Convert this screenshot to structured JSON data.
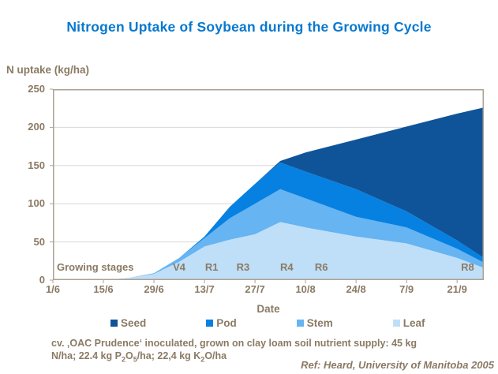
{
  "title": "Nitrogen Uptake of Soybean during the Growing Cycle",
  "y_axis": {
    "title": "N uptake (kg/ha)",
    "ticks": [
      0,
      50,
      100,
      150,
      200,
      250
    ]
  },
  "x_axis": {
    "title": "Date"
  },
  "annotations": {
    "growing_stages_label": "Growing stages",
    "stages": [
      {
        "label": "V4",
        "day": 35
      },
      {
        "label": "R1",
        "day": 44
      },
      {
        "label": "R3",
        "day": 52.7
      },
      {
        "label": "R4",
        "day": 64.8
      },
      {
        "label": "R6",
        "day": 74.4
      },
      {
        "label": "R8",
        "day": 114.9
      }
    ]
  },
  "legend": {
    "items": [
      {
        "label": "Seed",
        "color": "#0F5499"
      },
      {
        "label": "Pod",
        "color": "#0681E1"
      },
      {
        "label": "Stem",
        "color": "#66B4F1"
      },
      {
        "label": "Leaf",
        "color": "#BFDFF8"
      }
    ]
  },
  "footnote": {
    "line1": "cv. ‚OAC Prudence‘ inoculated, grown on clay loam soil nutrient supply: 45 kg",
    "line2_parts": [
      {
        "t": "N/ha;  22.4 kg P"
      },
      {
        "t": "2",
        "sub": true
      },
      {
        "t": "O"
      },
      {
        "t": "5",
        "sub": true
      },
      {
        "t": "/ha;  22,4 kg K"
      },
      {
        "t": "2",
        "sub": true
      },
      {
        "t": "O/ha"
      }
    ]
  },
  "ref": "Ref: Heard, University of Manitoba 2005",
  "theme": {
    "title_color": "#0878CE",
    "text_color": "#8A7A64",
    "axis_color": "#ACA193",
    "gridline_color": "#D8D8D8",
    "background": "#FFFFFF"
  },
  "chart_data": {
    "type": "area",
    "stacked": true,
    "title": "Nitrogen Uptake of Soybean during the Growing Cycle",
    "xlabel": "Date",
    "ylabel": "N uptake (kg/ha)",
    "ylim": [
      0,
      250
    ],
    "grid": "horizontal",
    "legend_position": "bottom",
    "x_unit": "days after 1/6",
    "x_domain_days": [
      0,
      119.4
    ],
    "x_tick_days": [
      0,
      14,
      28,
      42,
      56,
      70,
      84,
      98,
      112
    ],
    "x_tick_labels": [
      "1/6",
      "15/6",
      "29/6",
      "13/7",
      "27/7",
      "10/8",
      "24/8",
      "7/9",
      "21/9"
    ],
    "points_days": [
      0,
      14,
      21,
      28,
      35,
      42,
      49,
      56,
      63,
      70,
      84,
      98,
      112,
      119.4
    ],
    "points_dates": [
      "1/6",
      "15/6",
      "22/6",
      "29/6",
      "6/7",
      "13/7",
      "20/7",
      "27/7",
      "3/8",
      "10/8",
      "24/8",
      "7/9",
      "21/9",
      "28/9"
    ],
    "stack_order_bottom_to_top": [
      "Leaf",
      "Stem",
      "Pod",
      "Seed"
    ],
    "series": [
      {
        "name": "Leaf",
        "color": "#BFDFF8",
        "values": [
          0,
          0,
          3,
          8,
          24,
          44,
          53,
          60,
          76,
          69,
          57,
          48,
          29,
          16
        ]
      },
      {
        "name": "Stem",
        "color": "#66B4F1",
        "values": [
          0,
          0,
          0,
          1,
          5,
          11,
          28,
          40,
          43,
          38,
          26,
          21,
          12,
          7
        ]
      },
      {
        "name": "Pod",
        "color": "#0681E1",
        "values": [
          0,
          0,
          0,
          0,
          0,
          2,
          15,
          26,
          35,
          35,
          36,
          21,
          11,
          6
        ]
      },
      {
        "name": "Seed",
        "color": "#0F5499",
        "values": [
          0,
          0,
          0,
          0,
          0,
          0,
          0,
          0,
          2,
          25,
          65,
          111,
          166,
          197
        ]
      }
    ],
    "totals": [
      0,
      0,
      3,
      9,
      29,
      57,
      96,
      126,
      156,
      167,
      184,
      201,
      218,
      226
    ]
  }
}
